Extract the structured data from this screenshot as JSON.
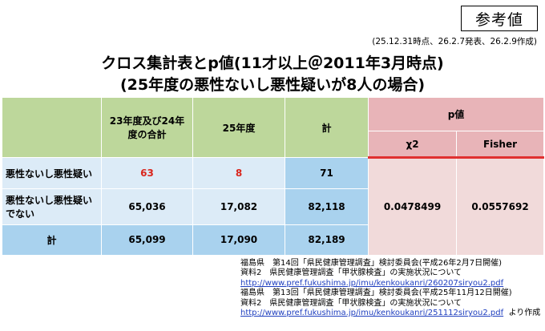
{
  "badge": "参考値",
  "dates": "(25.12.31時点、26.2.7発表、26.2.9作成)",
  "title_line1": "クロス集計表とp値(11才以上＠2011年3月時点)",
  "title_line2": "(25年度の悪性ないし悪性疑いが8人の場合)",
  "table": {
    "col_headers": {
      "combined": "23年度及び24年度の合計",
      "fy25": "25年度",
      "total": "計",
      "pvalue": "p値",
      "chi2": "χ2",
      "fisher": "Fisher"
    },
    "rows": [
      {
        "label": "悪性ないし悪性疑い",
        "combined": "63",
        "fy25": "8",
        "total": "71"
      },
      {
        "label": "悪性ないし悪性疑いでない",
        "combined": "65,036",
        "fy25": "17,082",
        "total": "82,118"
      },
      {
        "label": "計",
        "combined": "65,099",
        "fy25": "17,090",
        "total": "82,189"
      }
    ],
    "chi2_value": "0.0478499",
    "fisher_value": "0.0557692"
  },
  "sources": {
    "line1": "福島県　第14回「県民健康管理調査」検討委員会(平成26年2月7日開催)",
    "line2": "資料2　県民健康管理調査「甲状腺検査」の実施状況について",
    "url1": "http://www.pref.fukushima.jp/imu/kenkoukanri/260207siryou2.pdf",
    "line3": "福島県　第13回「県民健康管理調査」検討委員会(平成25年11月12日開催)",
    "line4": "資料2　県民健康管理調査「甲状腺検査」の実施状況について",
    "url2": "http://www.pref.fukushima.jp/imu/kenkoukanri/251112siryou2.pdf",
    "suffix": "より作成"
  }
}
